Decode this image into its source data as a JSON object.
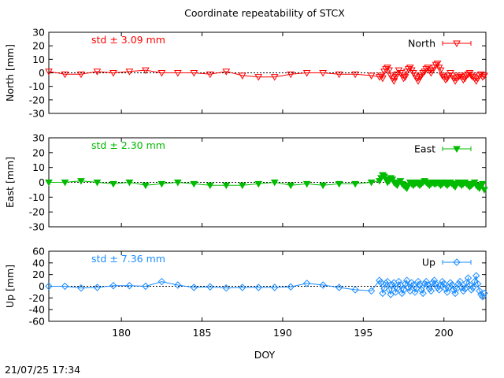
{
  "page": {
    "title": "Coordinate repeatability of STCX",
    "timestamp": "21/07/25 17:34"
  },
  "chart_data": [
    {
      "type": "line",
      "title": "Coordinate repeatability of STCX",
      "panel": "North",
      "ylabel": "North [mm]",
      "xlabel": "",
      "xlim": [
        175.5,
        202.6
      ],
      "ylim": [
        -30,
        30
      ],
      "yticks": [
        "30",
        "20",
        "10",
        "0",
        "-10",
        "-20",
        "-30"
      ],
      "xticks": [],
      "grid": false,
      "legend": "top-right",
      "annotation": "std ± 3.09 mm",
      "color": "#ff0000",
      "marker": "triangle-down-open",
      "series": [
        {
          "name": "North",
          "x": [
            175.5,
            176.5,
            177.5,
            178.5,
            179.5,
            180.5,
            181.5,
            182.5,
            183.5,
            184.5,
            185.5,
            186.5,
            187.5,
            188.5,
            189.5,
            190.5,
            191.5,
            192.5,
            193.5,
            194.5,
            195.5,
            196.0,
            196.1,
            196.2,
            196.3,
            196.4,
            196.5,
            196.6,
            196.7,
            196.8,
            196.9,
            197.0,
            197.1,
            197.2,
            197.3,
            197.4,
            197.5,
            197.6,
            197.7,
            197.8,
            197.9,
            198.0,
            198.1,
            198.2,
            198.3,
            198.4,
            198.5,
            198.6,
            198.7,
            198.8,
            198.9,
            199.0,
            199.1,
            199.2,
            199.3,
            199.4,
            199.5,
            199.6,
            199.7,
            199.8,
            199.9,
            200.0,
            200.1,
            200.2,
            200.3,
            200.4,
            200.5,
            200.6,
            200.7,
            200.8,
            200.9,
            201.0,
            201.1,
            201.2,
            201.3,
            201.4,
            201.5,
            201.6,
            201.7,
            201.8,
            201.9,
            202.0,
            202.1,
            202.2,
            202.3,
            202.4,
            202.5
          ],
          "y": [
            1,
            -1,
            -1,
            1,
            0,
            1,
            2,
            0,
            0,
            0,
            -1,
            1,
            -2,
            -3,
            -3,
            -1,
            0,
            0,
            -1,
            -1,
            -2,
            -3,
            -2,
            -4,
            1,
            3,
            4,
            2,
            -2,
            -4,
            -6,
            -3,
            -1,
            2,
            0,
            -2,
            -4,
            -3,
            1,
            3,
            4,
            2,
            0,
            -2,
            -4,
            -6,
            -3,
            -2,
            0,
            1,
            3,
            4,
            2,
            0,
            2,
            4,
            6,
            7,
            4,
            2,
            -2,
            -3,
            -5,
            -4,
            -2,
            0,
            -2,
            -4,
            -6,
            -4,
            -3,
            -2,
            -3,
            -5,
            -4,
            -2,
            -1,
            0,
            -2,
            -3,
            -4,
            -6,
            -4,
            -2,
            -1,
            -3,
            -2
          ]
        }
      ]
    },
    {
      "type": "line",
      "panel": "East",
      "ylabel": "East [mm]",
      "xlabel": "",
      "xlim": [
        175.5,
        202.6
      ],
      "ylim": [
        -30,
        30
      ],
      "yticks": [
        "30",
        "20",
        "10",
        "0",
        "-10",
        "-20",
        "-30"
      ],
      "xticks": [],
      "grid": false,
      "legend": "top-right",
      "annotation": "std ± 2.30 mm",
      "color": "#00bb00",
      "marker": "triangle-down-filled",
      "series": [
        {
          "name": "East",
          "x": [
            175.5,
            176.5,
            177.5,
            178.5,
            179.5,
            180.5,
            181.5,
            182.5,
            183.5,
            184.5,
            185.5,
            186.5,
            187.5,
            188.5,
            189.5,
            190.5,
            191.5,
            192.5,
            193.5,
            194.5,
            195.5,
            196.0,
            196.1,
            196.2,
            196.3,
            196.4,
            196.5,
            196.6,
            196.7,
            196.8,
            196.9,
            197.0,
            197.1,
            197.2,
            197.3,
            197.4,
            197.5,
            197.6,
            197.7,
            197.8,
            197.9,
            198.0,
            198.1,
            198.2,
            198.3,
            198.4,
            198.5,
            198.6,
            198.7,
            198.8,
            198.9,
            199.0,
            199.1,
            199.2,
            199.3,
            199.4,
            199.5,
            199.6,
            199.7,
            199.8,
            199.9,
            200.0,
            200.1,
            200.2,
            200.3,
            200.4,
            200.5,
            200.6,
            200.7,
            200.8,
            200.9,
            201.0,
            201.1,
            201.2,
            201.3,
            201.4,
            201.5,
            201.6,
            201.7,
            201.8,
            201.9,
            202.0,
            202.1,
            202.2,
            202.3,
            202.4,
            202.5
          ],
          "y": [
            0,
            0,
            1,
            0,
            -1,
            0,
            -2,
            -1,
            0,
            -1,
            -2,
            -2,
            -2,
            -1,
            0,
            -2,
            -1,
            -2,
            -1,
            -1,
            0,
            1,
            3,
            5,
            4,
            2,
            0,
            1,
            3,
            2,
            0,
            -1,
            -2,
            0,
            1,
            -1,
            -2,
            -3,
            -4,
            -2,
            0,
            -1,
            -2,
            -1,
            0,
            -1,
            -2,
            -1,
            0,
            1,
            0,
            -1,
            -2,
            -1,
            0,
            -1,
            -1,
            0,
            -1,
            -2,
            -1,
            0,
            -1,
            -2,
            -1,
            0,
            -1,
            -2,
            -3,
            -1,
            0,
            -1,
            -2,
            -1,
            0,
            -1,
            -2,
            -3,
            -2,
            -1,
            0,
            -2,
            -3,
            -4,
            -2,
            -1,
            -5
          ]
        }
      ]
    },
    {
      "type": "line",
      "panel": "Up",
      "ylabel": "Up [mm]",
      "xlabel": "DOY",
      "xlim": [
        175.5,
        202.6
      ],
      "ylim": [
        -60,
        60
      ],
      "yticks": [
        "60",
        "40",
        "20",
        "0",
        "-20",
        "-40",
        "-60"
      ],
      "xticks": [
        "180",
        "185",
        "190",
        "195",
        "200"
      ],
      "grid": false,
      "legend": "top-right",
      "annotation": "std ± 7.36 mm",
      "color": "#1a8cff",
      "marker": "diamond-open",
      "series": [
        {
          "name": "Up",
          "x": [
            175.5,
            176.5,
            177.5,
            178.5,
            179.5,
            180.5,
            181.5,
            182.5,
            183.5,
            184.5,
            185.5,
            186.5,
            187.5,
            188.5,
            189.5,
            190.5,
            191.5,
            192.5,
            193.5,
            194.5,
            195.5,
            196.0,
            196.1,
            196.2,
            196.3,
            196.4,
            196.5,
            196.6,
            196.7,
            196.8,
            196.9,
            197.0,
            197.1,
            197.2,
            197.3,
            197.4,
            197.5,
            197.6,
            197.7,
            197.8,
            197.9,
            198.0,
            198.1,
            198.2,
            198.3,
            198.4,
            198.5,
            198.6,
            198.7,
            198.8,
            198.9,
            199.0,
            199.1,
            199.2,
            199.3,
            199.4,
            199.5,
            199.6,
            199.7,
            199.8,
            199.9,
            200.0,
            200.1,
            200.2,
            200.3,
            200.4,
            200.5,
            200.6,
            200.7,
            200.8,
            200.9,
            201.0,
            201.1,
            201.2,
            201.3,
            201.4,
            201.5,
            201.6,
            201.7,
            201.8,
            201.9,
            202.0,
            202.1,
            202.2,
            202.3,
            202.4,
            202.5
          ],
          "y": [
            0,
            0,
            -3,
            -2,
            1,
            1,
            0,
            8,
            2,
            -2,
            -1,
            -3,
            -2,
            -2,
            -2,
            -1,
            5,
            2,
            -2,
            -6,
            -8,
            10,
            6,
            -12,
            -4,
            5,
            8,
            -6,
            -14,
            2,
            6,
            -10,
            -4,
            8,
            2,
            -12,
            -6,
            4,
            10,
            -2,
            -8,
            6,
            2,
            -10,
            -4,
            8,
            3,
            -6,
            -12,
            4,
            8,
            2,
            -4,
            -8,
            6,
            10,
            4,
            -2,
            -6,
            2,
            8,
            4,
            -4,
            -10,
            -2,
            6,
            2,
            -6,
            -12,
            -4,
            4,
            8,
            -2,
            -8,
            -4,
            6,
            14,
            2,
            -6,
            -2,
            8,
            18,
            4,
            -8,
            -14,
            -18,
            -12
          ]
        }
      ]
    }
  ]
}
